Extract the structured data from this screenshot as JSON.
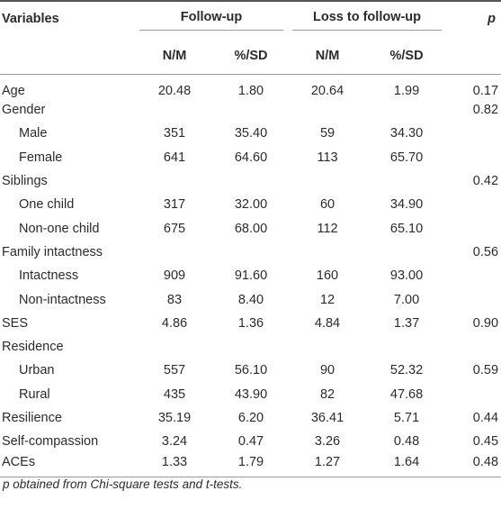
{
  "header": {
    "variables_label": "Variables",
    "group1_label": "Follow-up",
    "group2_label": "Loss to follow-up",
    "p_label": "p",
    "sub_nm1": "N/M",
    "sub_pct1": "%/SD",
    "sub_nm2": "N/M",
    "sub_pct2": "%/SD"
  },
  "rows": [
    {
      "label": "Age",
      "sub": false,
      "fu_n": "20.48",
      "fu_pct": "1.80",
      "ltf_n": "20.64",
      "ltf_pct": "1.99",
      "p": "0.17"
    },
    {
      "label": "Gender",
      "sub": false,
      "fu_n": "",
      "fu_pct": "",
      "ltf_n": "",
      "ltf_pct": "",
      "p": "0.82"
    },
    {
      "label": "Male",
      "sub": true,
      "fu_n": "351",
      "fu_pct": "35.40",
      "ltf_n": "59",
      "ltf_pct": "34.30",
      "p": ""
    },
    {
      "label": "Female",
      "sub": true,
      "fu_n": "641",
      "fu_pct": "64.60",
      "ltf_n": "113",
      "ltf_pct": "65.70",
      "p": ""
    },
    {
      "label": "Siblings",
      "sub": false,
      "fu_n": "",
      "fu_pct": "",
      "ltf_n": "",
      "ltf_pct": "",
      "p": "0.42"
    },
    {
      "label": "One child",
      "sub": true,
      "fu_n": "317",
      "fu_pct": "32.00",
      "ltf_n": "60",
      "ltf_pct": "34.90",
      "p": ""
    },
    {
      "label": "Non-one child",
      "sub": true,
      "fu_n": "675",
      "fu_pct": "68.00",
      "ltf_n": "112",
      "ltf_pct": "65.10",
      "p": ""
    },
    {
      "label": "Family intactness",
      "sub": false,
      "fu_n": "",
      "fu_pct": "",
      "ltf_n": "",
      "ltf_pct": "",
      "p": "0.56"
    },
    {
      "label": "Intactness",
      "sub": true,
      "fu_n": "909",
      "fu_pct": "91.60",
      "ltf_n": "160",
      "ltf_pct": "93.00",
      "p": ""
    },
    {
      "label": "Non-intactness",
      "sub": true,
      "fu_n": "83",
      "fu_pct": "8.40",
      "ltf_n": "12",
      "ltf_pct": "7.00",
      "p": ""
    },
    {
      "label": "SES",
      "sub": false,
      "fu_n": "4.86",
      "fu_pct": "1.36",
      "ltf_n": "4.84",
      "ltf_pct": "1.37",
      "p": "0.90"
    },
    {
      "label": "Residence",
      "sub": false,
      "fu_n": "",
      "fu_pct": "",
      "ltf_n": "",
      "ltf_pct": "",
      "p": ""
    },
    {
      "label": "Urban",
      "sub": true,
      "fu_n": "557",
      "fu_pct": "56.10",
      "ltf_n": "90",
      "ltf_pct": "52.32",
      "p": "0.59"
    },
    {
      "label": "Rural",
      "sub": true,
      "fu_n": "435",
      "fu_pct": "43.90",
      "ltf_n": "82",
      "ltf_pct": "47.68",
      "p": ""
    },
    {
      "label": "Resilience",
      "sub": false,
      "fu_n": "35.19",
      "fu_pct": "6.20",
      "ltf_n": "36.41",
      "ltf_pct": "5.71",
      "p": "0.44"
    },
    {
      "label": "Self-compassion",
      "sub": false,
      "fu_n": "3.24",
      "fu_pct": "0.47",
      "ltf_n": "3.26",
      "ltf_pct": "0.48",
      "p": "0.45"
    },
    {
      "label": "ACEs",
      "sub": false,
      "fu_n": "1.33",
      "fu_pct": "1.79",
      "ltf_n": "1.27",
      "ltf_pct": "1.64",
      "p": "0.48"
    }
  ],
  "footnote": "p obtained from Chi-square tests and t-tests."
}
